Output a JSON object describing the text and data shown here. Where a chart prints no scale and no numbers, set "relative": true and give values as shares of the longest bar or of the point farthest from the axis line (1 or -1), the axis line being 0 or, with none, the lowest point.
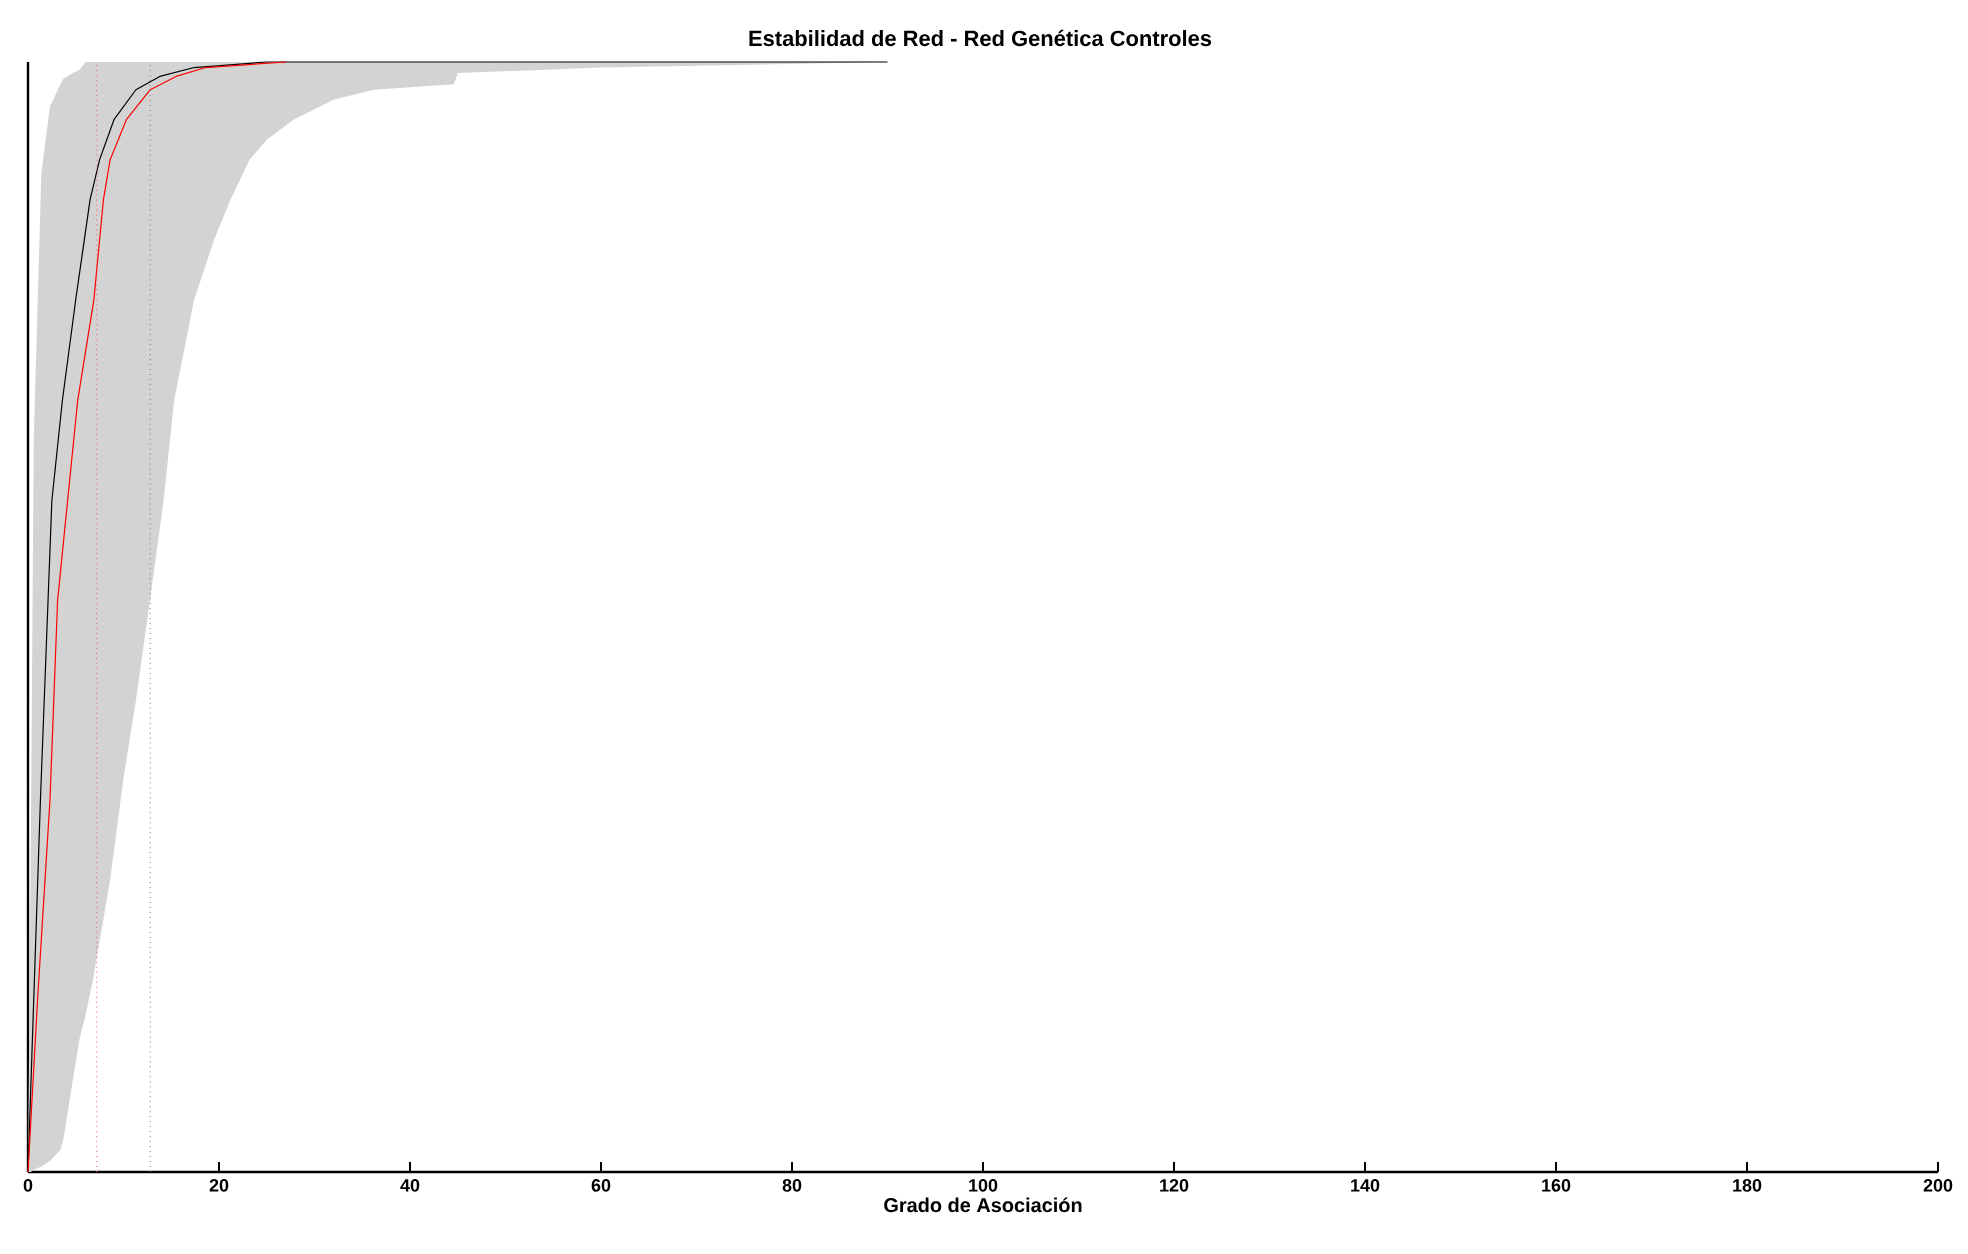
{
  "chart_data": {
    "type": "line",
    "title": "Estabilidad de Red - Red Genética Controles",
    "xlabel": "Grado de Asociación",
    "relative": true,
    "xlim": [
      0,
      200
    ],
    "xticks": [
      0,
      20,
      40,
      60,
      80,
      100,
      120,
      140,
      160,
      180,
      200
    ],
    "series": [
      {
        "color": "#d3d3d3",
        "x": [
          0,
          0.3,
          0.6,
          1.4,
          2.3,
          3.4,
          3.7,
          4.7,
          5.4,
          6,
          6.8,
          8.6,
          10,
          11.3,
          12.8,
          14.2,
          15.3,
          17.4,
          19.5,
          21.2,
          23.2,
          25,
          27.8,
          32,
          36.2,
          44.6,
          45,
          60,
          90
        ],
        "values": [
          null,
          null,
          null,
          null,
          null,
          null,
          null,
          null,
          null,
          null,
          null,
          null,
          null,
          null,
          null,
          null,
          null,
          null,
          null,
          null,
          null,
          null,
          null,
          null,
          null,
          null,
          null,
          null,
          null
        ],
        "lower": [
          0,
          0,
          0.002,
          0.005,
          0.01,
          0.02,
          0.029,
          0.083,
          0.12,
          0.14,
          0.173,
          0.263,
          0.355,
          0.425,
          0.517,
          0.605,
          0.695,
          0.786,
          0.84,
          0.876,
          0.912,
          0.93,
          0.948,
          0.966,
          0.975,
          0.98,
          0.99,
          0.995,
          1
        ],
        "upper": [
          0,
          0.3,
          0.66,
          0.9,
          0.96,
          0.98,
          0.985,
          0.99,
          0.993,
          1,
          1,
          1,
          1,
          1,
          1,
          1,
          1,
          1,
          1,
          1,
          1,
          1,
          1,
          1,
          1,
          1,
          1,
          1,
          1
        ]
      },
      {
        "color": "#000000",
        "x": [
          0,
          0.6,
          1.3,
          2.1,
          2.5,
          3.6,
          5.0,
          6.5,
          7.5,
          9.0,
          11.3,
          13.8,
          17.4,
          25,
          90
        ],
        "values": [
          0,
          0.155,
          0.335,
          0.515,
          0.605,
          0.695,
          0.786,
          0.876,
          0.912,
          0.948,
          0.975,
          0.987,
          0.995,
          1,
          1
        ]
      },
      {
        "color": "#ff0000",
        "x": [
          0,
          1.0,
          2.3,
          3.1,
          5.2,
          6.9,
          7.9,
          8.6,
          10.3,
          12.8,
          15.5,
          18.6,
          27
        ],
        "values": [
          0,
          0.155,
          0.335,
          0.515,
          0.695,
          0.786,
          0.876,
          0.912,
          0.948,
          0.975,
          0.987,
          0.995,
          1
        ]
      }
    ],
    "ref_lines": [
      {
        "axis": "x",
        "value": 7.2,
        "color": "#ff5555",
        "line_style": "dotted"
      },
      {
        "axis": "x",
        "value": 12.8,
        "color": "#707070",
        "line_style": "dotted"
      }
    ],
    "grid": false
  }
}
